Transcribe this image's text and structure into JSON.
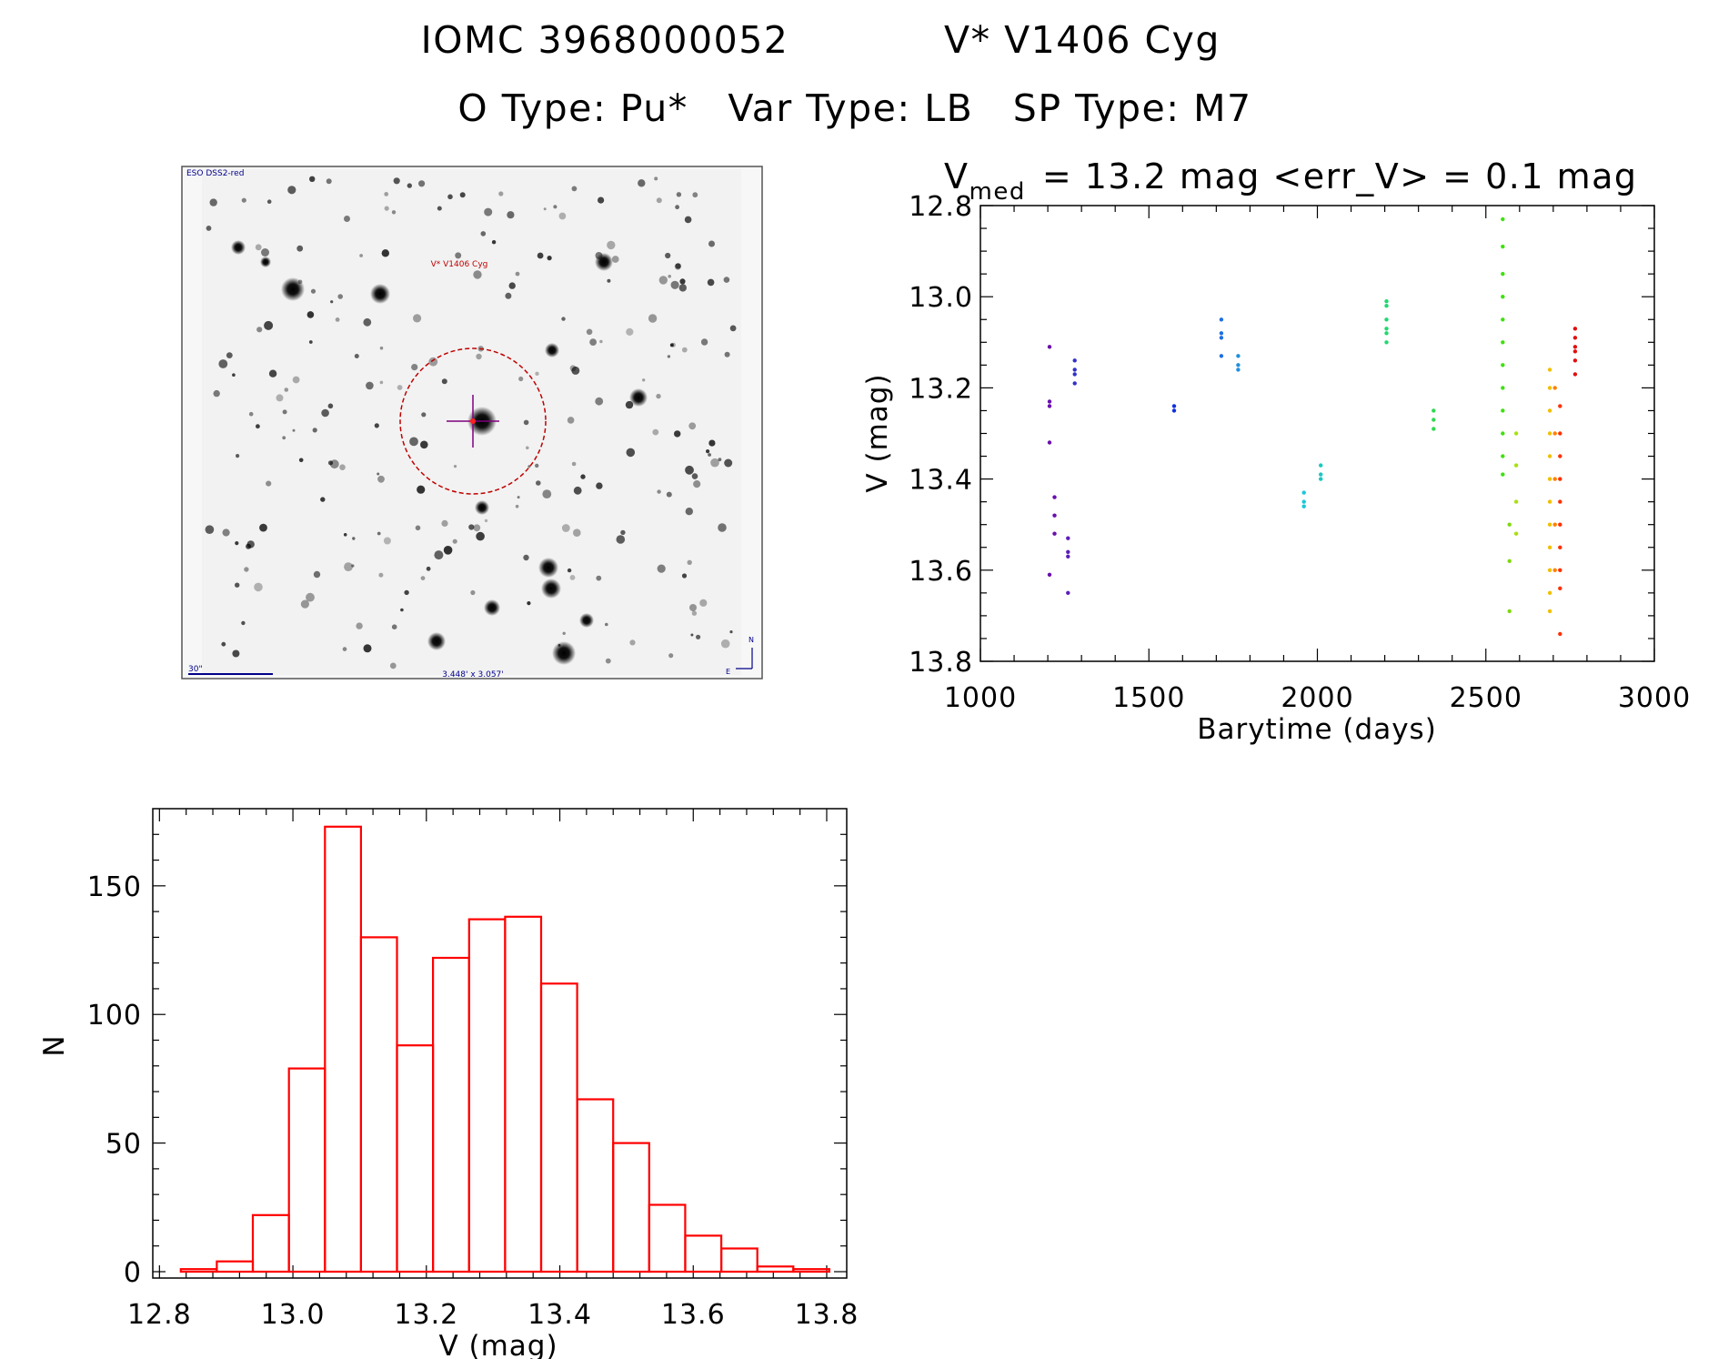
{
  "header": {
    "title_line1_id": "IOMC 3968000052",
    "title_line1_name": "V* V1406 Cyg",
    "title_line2": "O Type: Pu*   Var Type: LB   SP Type: M7"
  },
  "finding_chart": {
    "survey_label": "ESO DSS2-red",
    "target_label": "V* V1406 Cyg",
    "scale_label": "30\"",
    "size_label": "3.448' x 3.057'",
    "north_label": "N",
    "east_label": "E",
    "colors": {
      "circle": "#c00000",
      "text": "#00008b",
      "crosshair": "#800080"
    }
  },
  "lightcurve_subtitle": {
    "prefix": "V",
    "subscript": "med",
    "text": "= 13.2 mag <err_V> = 0.1 mag"
  },
  "chart_data": [
    {
      "type": "scatter",
      "title": "V med = 13.2 mag <err_V> = 0.1 mag",
      "xlabel": "Barytime (days)",
      "ylabel": "V (mag)",
      "xlim": [
        1000,
        3000
      ],
      "ylim": [
        13.8,
        12.8
      ],
      "y_inverted": true,
      "x_ticks": [
        1000,
        1500,
        2000,
        2500,
        3000
      ],
      "y_ticks": [
        "12.8",
        "13.0",
        "13.2",
        "13.4",
        "13.6",
        "13.8"
      ],
      "color_scale": "rainbow by time (purple→red)",
      "groups": [
        {
          "x": 1205,
          "y": [
            13.11,
            13.23,
            13.24,
            13.32,
            13.61
          ],
          "color": "#6a0dad"
        },
        {
          "x": 1220,
          "y": [
            13.44,
            13.48,
            13.52
          ],
          "color": "#6a0dad"
        },
        {
          "x": 1260,
          "y": [
            13.53,
            13.56,
            13.57,
            13.65
          ],
          "color": "#5b1fb8"
        },
        {
          "x": 1280,
          "y": [
            13.14,
            13.16,
            13.17,
            13.19
          ],
          "color": "#3030c8"
        },
        {
          "x": 1575,
          "y": [
            13.24,
            13.25
          ],
          "color": "#1030e0"
        },
        {
          "x": 1715,
          "y": [
            13.05,
            13.08,
            13.09,
            13.13
          ],
          "color": "#1e6fe0"
        },
        {
          "x": 1765,
          "y": [
            13.13,
            13.15,
            13.16
          ],
          "color": "#1e8fe0"
        },
        {
          "x": 1960,
          "y": [
            13.43,
            13.45,
            13.46
          ],
          "color": "#19c8d8"
        },
        {
          "x": 2010,
          "y": [
            13.37,
            13.39,
            13.4
          ],
          "color": "#19c8c0"
        },
        {
          "x": 2205,
          "y": [
            13.01,
            13.02,
            13.05,
            13.07,
            13.08,
            13.1
          ],
          "color": "#20d870"
        },
        {
          "x": 2345,
          "y": [
            13.25,
            13.27,
            13.29
          ],
          "color": "#30d850"
        },
        {
          "x": 2550,
          "y": [
            12.83,
            12.89,
            12.95,
            13.0,
            13.05,
            13.1,
            13.15,
            13.2,
            13.25,
            13.3,
            13.35,
            13.39
          ],
          "color": "#40e010"
        },
        {
          "x": 2570,
          "y": [
            13.5,
            13.58,
            13.69
          ],
          "color": "#80d810"
        },
        {
          "x": 2590,
          "y": [
            13.3,
            13.37,
            13.45,
            13.52
          ],
          "color": "#a8e010"
        },
        {
          "x": 2690,
          "y": [
            13.16,
            13.2,
            13.25,
            13.3,
            13.35,
            13.4,
            13.45,
            13.5,
            13.55,
            13.6,
            13.65,
            13.69
          ],
          "color": "#f0c000"
        },
        {
          "x": 2705,
          "y": [
            13.2,
            13.3,
            13.4,
            13.5,
            13.6
          ],
          "color": "#ff8000"
        },
        {
          "x": 2720,
          "y": [
            13.24,
            13.3,
            13.35,
            13.4,
            13.45,
            13.5,
            13.55,
            13.6,
            13.64,
            13.74
          ],
          "color": "#ff3000"
        },
        {
          "x": 2765,
          "y": [
            13.07,
            13.09,
            13.11,
            13.12,
            13.14,
            13.17
          ],
          "color": "#e01010"
        }
      ]
    },
    {
      "type": "bar",
      "histogram": true,
      "xlabel": "V (mag)",
      "ylabel": "N",
      "xlim": [
        12.8,
        13.8
      ],
      "ylim": [
        0,
        180
      ],
      "x_ticks": [
        "12.8",
        "13.0",
        "13.2",
        "13.4",
        "13.6",
        "13.8"
      ],
      "y_ticks": [
        "0",
        "50",
        "100",
        "150"
      ],
      "bin_width": 0.054,
      "bin_starts": [
        12.832,
        12.886,
        12.94,
        12.994,
        13.048,
        13.102,
        13.156,
        13.21,
        13.264,
        13.318,
        13.372,
        13.426,
        13.48,
        13.534,
        13.588,
        13.642,
        13.696,
        13.75
      ],
      "values": [
        1,
        4,
        22,
        79,
        173,
        130,
        88,
        122,
        137,
        138,
        112,
        67,
        50,
        26,
        14,
        9,
        2,
        1
      ],
      "color": "#ff0000"
    }
  ]
}
